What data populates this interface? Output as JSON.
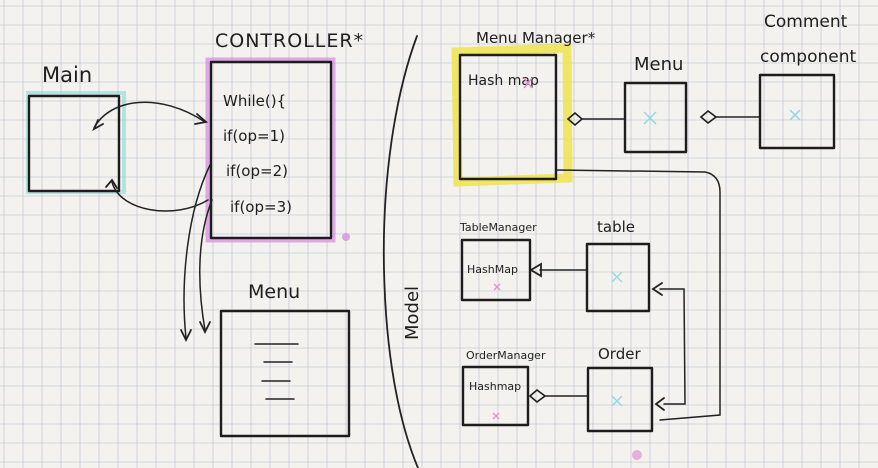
{
  "colors": {
    "paper": "#f3f2ee",
    "grid": "#c5cbd7",
    "ink": "#1d1d1d",
    "controller_highlight": "#d58fe0",
    "menu_manager_highlight": "#efe34c",
    "main_highlight": "#7fd6cf",
    "cyan_mark": "#8fd8e3",
    "pink_mark": "#e58fd0"
  },
  "labels": {
    "main": "Main",
    "controller": "CONTROLLER*",
    "menu_view": "Menu",
    "model": "Model",
    "menu_manager": "Menu Manager*",
    "menu_manager_hashmap": "Hash map",
    "menu": "Menu",
    "comment": "Comment",
    "component": "component",
    "table_manager": "TableManager",
    "table_manager_hashmap": "HashMap",
    "table": "table",
    "order_manager": "OrderManager",
    "order_manager_hashmap": "Hashmap",
    "order": "Order"
  },
  "controller_code": [
    "While(){",
    "if(op=1)",
    "if(op=2)",
    "if(op=3)"
  ]
}
